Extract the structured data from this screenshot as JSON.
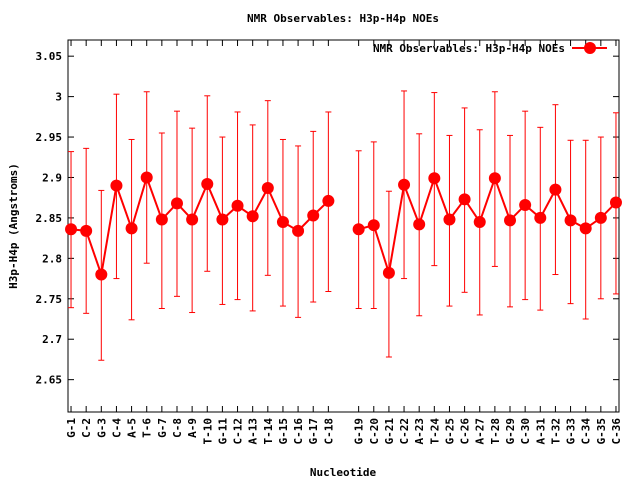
{
  "chart_data": {
    "type": "line",
    "title": "NMR Observables: H3p-H4p NOEs",
    "xlabel": "Nucleotide",
    "ylabel": "H3p-H4p (Angstroms)",
    "legend": {
      "label": "NMR Observables: H3p-H4p NOEs",
      "placement": "top-right"
    },
    "ylim": [
      2.61,
      3.07
    ],
    "xlim": [
      0.8,
      37.2
    ],
    "yticks": [
      2.65,
      2.7,
      2.75,
      2.8,
      2.85,
      2.9,
      2.95,
      3,
      3.05
    ],
    "ytick_labels": [
      "2.65",
      "2.7",
      "2.75",
      "2.8",
      "2.85",
      "2.9",
      "2.95",
      "3",
      "3.05"
    ],
    "grid": false,
    "color": "#ff0000",
    "x": [
      1,
      2,
      3,
      4,
      5,
      6,
      7,
      8,
      9,
      10,
      11,
      12,
      13,
      14,
      15,
      16,
      17,
      18,
      20,
      21,
      22,
      23,
      24,
      25,
      26,
      27,
      28,
      29,
      30,
      31,
      32,
      33,
      34,
      35,
      36,
      37
    ],
    "categories": [
      "G-1",
      "C-2",
      "G-3",
      "C-4",
      "A-5",
      "T-6",
      "G-7",
      "C-8",
      "A-9",
      "T-10",
      "G-11",
      "C-12",
      "A-13",
      "T-14",
      "G-15",
      "C-16",
      "G-17",
      "C-18",
      "G-19",
      "C-20",
      "G-21",
      "C-22",
      "A-23",
      "T-24",
      "G-25",
      "C-26",
      "A-27",
      "T-28",
      "G-29",
      "C-30",
      "A-31",
      "T-32",
      "G-33",
      "C-34",
      "G-35",
      "C-36"
    ],
    "series": [
      {
        "name": "NMR Observables: H3p-H4p NOEs",
        "values": [
          2.836,
          2.834,
          2.78,
          2.89,
          2.837,
          2.9,
          2.848,
          2.868,
          2.848,
          2.892,
          2.848,
          2.865,
          2.852,
          2.887,
          2.845,
          2.834,
          2.853,
          2.871,
          2.836,
          2.841,
          2.782,
          2.891,
          2.842,
          2.899,
          2.848,
          2.873,
          2.845,
          2.899,
          2.847,
          2.866,
          2.85,
          2.885,
          2.847,
          2.837,
          2.85,
          2.869
        ],
        "err_high": [
          2.932,
          2.936,
          2.884,
          3.003,
          2.947,
          3.006,
          2.955,
          2.982,
          2.961,
          3.001,
          2.95,
          2.981,
          2.965,
          2.995,
          2.947,
          2.939,
          2.957,
          2.981,
          2.933,
          2.944,
          2.883,
          3.007,
          2.954,
          3.005,
          2.952,
          2.986,
          2.959,
          3.006,
          2.952,
          2.982,
          2.962,
          2.99,
          2.946,
          2.946,
          2.95,
          2.98
        ],
        "err_low": [
          2.739,
          2.732,
          2.674,
          2.775,
          2.724,
          2.794,
          2.738,
          2.753,
          2.733,
          2.784,
          2.743,
          2.749,
          2.735,
          2.779,
          2.741,
          2.727,
          2.746,
          2.759,
          2.738,
          2.738,
          2.678,
          2.775,
          2.729,
          2.791,
          2.741,
          2.758,
          2.73,
          2.79,
          2.74,
          2.749,
          2.736,
          2.78,
          2.744,
          2.725,
          2.75,
          2.756
        ]
      }
    ]
  }
}
